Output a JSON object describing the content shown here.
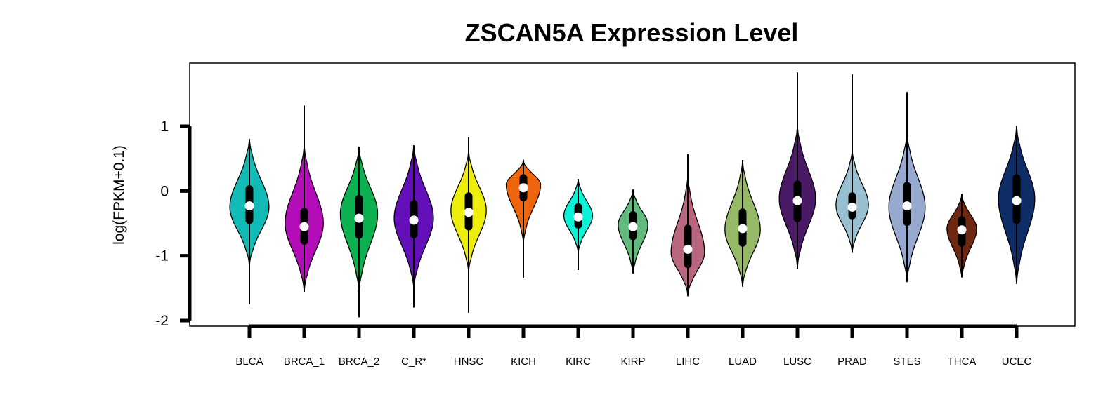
{
  "chart_data": {
    "type": "violin",
    "title": "ZSCAN5A Expression Level",
    "xlabel": "",
    "ylabel": "log(FPKM+0.1)",
    "ylim": [
      -2,
      1
    ],
    "yticks": [
      1,
      0,
      -1,
      -2
    ],
    "grid": false,
    "categories": [
      "BLCA",
      "BRCA_1",
      "BRCA_2",
      "C_R*",
      "HNSC",
      "KICH",
      "KIRC",
      "KIRP",
      "LIHC",
      "LUAD",
      "LUSC",
      "PRAD",
      "STES",
      "THCA",
      "UCEC"
    ],
    "colors": [
      "#12BAB6",
      "#B20DB7",
      "#0DB152",
      "#6410B9",
      "#EEEE0C",
      "#EE650E",
      "#0CF2D8",
      "#63BA7F",
      "#B9667F",
      "#95B966",
      "#4A1A66",
      "#98C0D0",
      "#98A9D0",
      "#6E2710",
      "#0E2D66"
    ],
    "violins": [
      {
        "median": -0.23,
        "q1": -0.45,
        "q3": 0.03,
        "whisker_min": -1.75,
        "whisker_max": 0.78,
        "vmin": -1.15,
        "vmax": 0.8,
        "peak": -0.25,
        "width": 0.82
      },
      {
        "median": -0.55,
        "q1": -0.77,
        "q3": -0.32,
        "whisker_min": -1.55,
        "whisker_max": 1.32,
        "vmin": -1.55,
        "vmax": 0.7,
        "peak": -0.5,
        "width": 0.8
      },
      {
        "median": -0.42,
        "q1": -0.68,
        "q3": -0.12,
        "whisker_min": -1.95,
        "whisker_max": 0.68,
        "vmin": -1.55,
        "vmax": 0.68,
        "peak": -0.35,
        "width": 0.78
      },
      {
        "median": -0.45,
        "q1": -0.67,
        "q3": -0.2,
        "whisker_min": -1.8,
        "whisker_max": 0.7,
        "vmin": -1.5,
        "vmax": 0.7,
        "peak": -0.42,
        "width": 0.82
      },
      {
        "median": -0.33,
        "q1": -0.55,
        "q3": -0.08,
        "whisker_min": -1.88,
        "whisker_max": 0.83,
        "vmin": -1.25,
        "vmax": 0.62,
        "peak": -0.3,
        "width": 0.74
      },
      {
        "median": 0.05,
        "q1": -0.1,
        "q3": 0.2,
        "whisker_min": -1.35,
        "whisker_max": 0.47,
        "vmin": -0.78,
        "vmax": 0.48,
        "peak": 0.1,
        "width": 0.72
      },
      {
        "median": -0.4,
        "q1": -0.52,
        "q3": -0.25,
        "whisker_min": -1.22,
        "whisker_max": 0.18,
        "vmin": -0.95,
        "vmax": 0.18,
        "peak": -0.38,
        "width": 0.6
      },
      {
        "median": -0.55,
        "q1": -0.7,
        "q3": -0.37,
        "whisker_min": -1.27,
        "whisker_max": 0.02,
        "vmin": -1.27,
        "vmax": 0.02,
        "peak": -0.52,
        "width": 0.62
      },
      {
        "median": -0.9,
        "q1": -1.13,
        "q3": -0.58,
        "whisker_min": -1.62,
        "whisker_max": 0.57,
        "vmin": -1.62,
        "vmax": 0.22,
        "peak": -0.95,
        "width": 0.7
      },
      {
        "median": -0.58,
        "q1": -0.8,
        "q3": -0.33,
        "whisker_min": -1.47,
        "whisker_max": 0.48,
        "vmin": -1.47,
        "vmax": 0.46,
        "peak": -0.6,
        "width": 0.74
      },
      {
        "median": -0.15,
        "q1": -0.42,
        "q3": 0.1,
        "whisker_min": -1.2,
        "whisker_max": 1.83,
        "vmin": -1.18,
        "vmax": 1.0,
        "peak": -0.12,
        "width": 0.76
      },
      {
        "median": -0.25,
        "q1": -0.38,
        "q3": -0.08,
        "whisker_min": -0.95,
        "whisker_max": 1.8,
        "vmin": -0.95,
        "vmax": 0.62,
        "peak": -0.22,
        "width": 0.68
      },
      {
        "median": -0.23,
        "q1": -0.48,
        "q3": 0.08,
        "whisker_min": -1.4,
        "whisker_max": 1.53,
        "vmin": -1.4,
        "vmax": 0.9,
        "peak": -0.25,
        "width": 0.76
      },
      {
        "median": -0.6,
        "q1": -0.8,
        "q3": -0.45,
        "whisker_min": -1.33,
        "whisker_max": -0.05,
        "vmin": -1.33,
        "vmax": -0.05,
        "peak": -0.58,
        "width": 0.62
      },
      {
        "median": -0.15,
        "q1": -0.45,
        "q3": 0.2,
        "whisker_min": -1.43,
        "whisker_max": 1.0,
        "vmin": -1.43,
        "vmax": 1.0,
        "peak": -0.12,
        "width": 0.76
      }
    ]
  }
}
